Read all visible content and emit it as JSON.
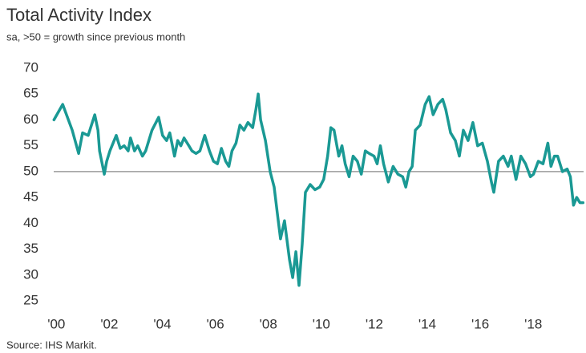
{
  "chart_data": {
    "type": "line",
    "title": "Total Activity Index",
    "subtitle": "sa, >50 = growth since previous month",
    "source": "Source: IHS Markit.",
    "x": [
      1999.91,
      2000.24,
      2000.6,
      2000.84,
      2000.99,
      2001.2,
      2001.45,
      2001.57,
      2001.63,
      2001.81,
      2001.9,
      2002.02,
      2002.26,
      2002.41,
      2002.56,
      2002.71,
      2002.8,
      2002.95,
      2003.07,
      2003.25,
      2003.37,
      2003.61,
      2003.86,
      2004.01,
      2004.16,
      2004.28,
      2004.46,
      2004.58,
      2004.7,
      2004.82,
      2005.0,
      2005.12,
      2005.27,
      2005.42,
      2005.6,
      2005.78,
      2005.93,
      2006.08,
      2006.23,
      2006.39,
      2006.51,
      2006.63,
      2006.78,
      2006.93,
      2007.08,
      2007.23,
      2007.41,
      2007.53,
      2007.62,
      2007.71,
      2007.89,
      2008.07,
      2008.22,
      2008.34,
      2008.46,
      2008.61,
      2008.8,
      2008.92,
      2009.04,
      2009.16,
      2009.28,
      2009.4,
      2009.58,
      2009.76,
      2009.94,
      2010.09,
      2010.24,
      2010.36,
      2010.48,
      2010.66,
      2010.78,
      2010.9,
      2011.05,
      2011.2,
      2011.36,
      2011.51,
      2011.66,
      2011.81,
      2011.99,
      2012.11,
      2012.23,
      2012.35,
      2012.53,
      2012.71,
      2012.89,
      2013.07,
      2013.19,
      2013.31,
      2013.43,
      2013.55,
      2013.73,
      2013.92,
      2014.07,
      2014.22,
      2014.4,
      2014.58,
      2014.7,
      2014.88,
      2015.06,
      2015.21,
      2015.36,
      2015.54,
      2015.72,
      2015.9,
      2016.08,
      2016.27,
      2016.42,
      2016.51,
      2016.69,
      2016.87,
      2017.05,
      2017.17,
      2017.35,
      2017.53,
      2017.71,
      2017.89,
      2018.01,
      2018.19,
      2018.37,
      2018.55,
      2018.67,
      2018.8,
      2018.92,
      2019.1,
      2019.28,
      2019.4,
      2019.52,
      2019.64,
      2019.76,
      2019.88
    ],
    "series": [
      {
        "name": "Total Activity Index",
        "color": "#1a9994",
        "values": [
          60,
          63,
          58,
          53.5,
          57.5,
          57,
          61,
          58,
          54,
          49.5,
          52,
          54,
          57,
          54.5,
          55,
          54,
          56.5,
          54,
          55,
          53,
          54,
          58,
          60.5,
          57,
          56,
          57.5,
          53,
          56,
          55,
          56.5,
          55,
          54,
          53.5,
          54,
          57,
          54,
          52,
          51.5,
          54.5,
          52,
          51,
          54,
          55.5,
          59,
          58,
          59.5,
          58.5,
          62,
          65,
          60,
          56,
          50,
          47,
          42,
          37,
          40.5,
          33,
          29.5,
          34.5,
          28,
          36,
          46,
          47.5,
          46.5,
          47,
          48.5,
          53,
          58.5,
          58,
          53,
          55,
          51.5,
          49,
          53,
          52,
          49.5,
          54,
          53.5,
          53,
          51.5,
          55,
          51.5,
          48,
          51,
          49.5,
          49,
          47,
          50,
          51,
          58,
          59,
          63,
          64.5,
          61,
          63,
          64,
          62,
          57.5,
          56,
          53,
          58,
          56,
          59.5,
          55,
          55.5,
          52,
          48,
          46,
          52,
          53,
          51,
          53,
          48.5,
          53,
          51.5,
          49,
          49.5,
          52,
          51.5,
          55.5,
          51,
          53,
          53,
          50,
          50.5,
          49,
          43.5,
          45,
          44,
          44
        ]
      }
    ],
    "xlim": [
      1999.9,
      2019.9
    ],
    "xticks": [
      {
        "value": 2000,
        "label": "'00"
      },
      {
        "value": 2002,
        "label": "'02"
      },
      {
        "value": 2004,
        "label": "'04"
      },
      {
        "value": 2006,
        "label": "'06"
      },
      {
        "value": 2008,
        "label": "'08"
      },
      {
        "value": 2010,
        "label": "'10"
      },
      {
        "value": 2012,
        "label": "'12"
      },
      {
        "value": 2014,
        "label": "'14"
      },
      {
        "value": 2016,
        "label": "'16"
      },
      {
        "value": 2018,
        "label": "'18"
      }
    ],
    "ylim": [
      25,
      70
    ],
    "yticks": [
      25,
      30,
      35,
      40,
      45,
      50,
      55,
      60,
      65,
      70
    ],
    "reference_line": 50,
    "grid": false
  }
}
